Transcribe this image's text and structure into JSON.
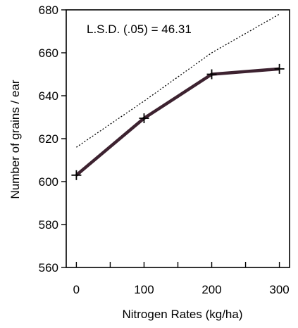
{
  "chart_data": {
    "type": "line",
    "title": "",
    "xlabel": "Nitrogen Rates (kg/ha)",
    "ylabel": "Number of grains / ear",
    "xlim": [
      -15,
      315
    ],
    "ylim": [
      560,
      680
    ],
    "x_ticks": [
      0,
      100,
      200,
      300
    ],
    "x_minor_ticks": [
      50,
      150,
      250
    ],
    "y_ticks": [
      560,
      580,
      600,
      620,
      640,
      660,
      680
    ],
    "x_tick_labels": [
      "0",
      "100",
      "200",
      "300"
    ],
    "y_tick_labels": [
      "560",
      "580",
      "600",
      "620",
      "640",
      "660",
      "680"
    ],
    "grid": false,
    "annotation": "L.S.D. (.05) = 46.31",
    "series": [
      {
        "x": [
          0,
          100,
          200,
          300
        ],
        "values": [
          603,
          629.5,
          650,
          652.5
        ],
        "color": "#3d2230",
        "marker": "plus"
      }
    ],
    "lsd_line": {
      "x": [
        0,
        100,
        200,
        300
      ],
      "values": [
        616,
        637.5,
        660,
        678
      ],
      "color": "#000000",
      "style": "dotted"
    }
  }
}
